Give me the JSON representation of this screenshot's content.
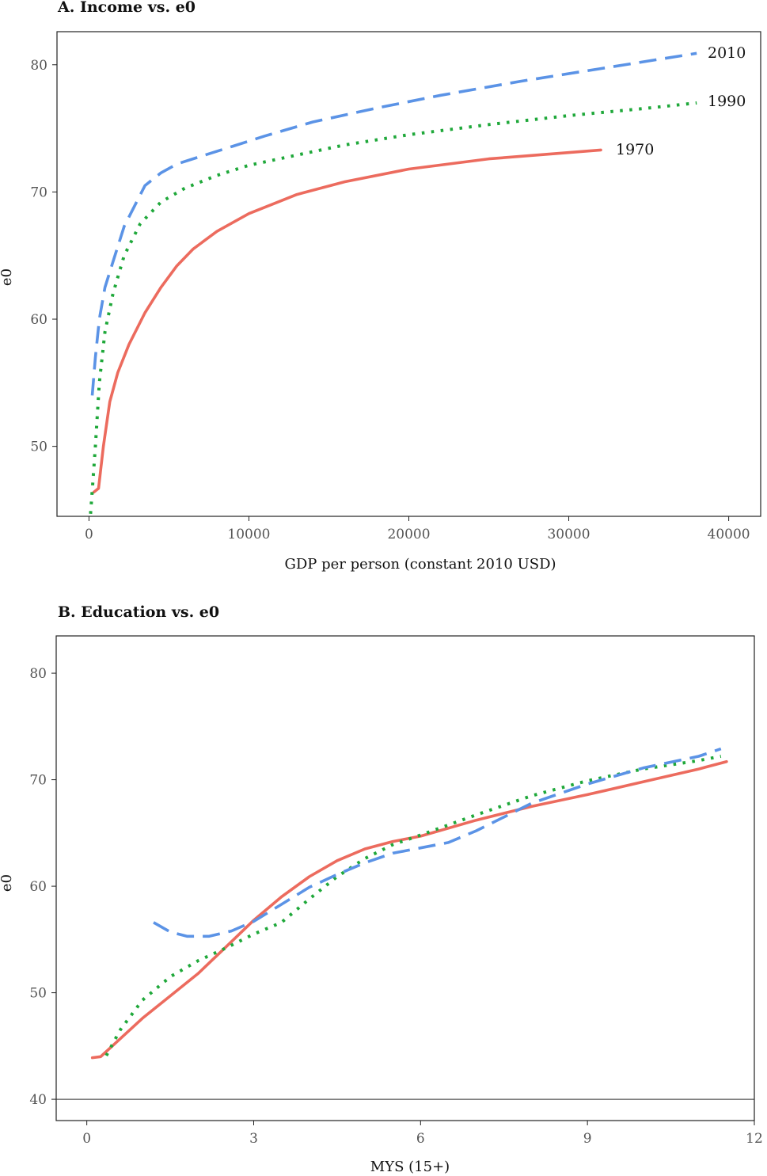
{
  "colors": {
    "1970": "#ec6b5e",
    "1990": "#1fa83a",
    "2010": "#5b93e6"
  },
  "chart_data": [
    {
      "type": "line",
      "title": "A. Income vs. e0",
      "xlabel": "GDP per person (constant 2010 USD)",
      "ylabel": "e0",
      "xlim": [
        -2000,
        42000
      ],
      "ylim": [
        44.5,
        82.6
      ],
      "xticks": [
        0,
        10000,
        20000,
        30000,
        40000
      ],
      "xtick_labels": [
        "0",
        "10000",
        "20000",
        "30000",
        "40000"
      ],
      "yticks": [
        50,
        60,
        70,
        80
      ],
      "ytick_labels": [
        "50",
        "60",
        "70",
        "80"
      ],
      "grid": false,
      "series": [
        {
          "name": "1970",
          "style": "solid",
          "points": [
            [
              300,
              46.4
            ],
            [
              600,
              46.7
            ],
            [
              900,
              50
            ],
            [
              1300,
              53.5
            ],
            [
              1800,
              55.8
            ],
            [
              2500,
              58
            ],
            [
              3500,
              60.5
            ],
            [
              4500,
              62.5
            ],
            [
              5500,
              64.2
            ],
            [
              6500,
              65.5
            ],
            [
              8000,
              66.9
            ],
            [
              10000,
              68.3
            ],
            [
              13000,
              69.8
            ],
            [
              16000,
              70.8
            ],
            [
              20000,
              71.8
            ],
            [
              25000,
              72.6
            ],
            [
              28000,
              72.9
            ],
            [
              32000,
              73.3
            ]
          ]
        },
        {
          "name": "1990",
          "style": "dotted",
          "points": [
            [
              100,
              44.7
            ],
            [
              200,
              46.5
            ],
            [
              400,
              50
            ],
            [
              650,
              55
            ],
            [
              1000,
              59
            ],
            [
              1500,
              62
            ],
            [
              2200,
              65
            ],
            [
              3200,
              67.5
            ],
            [
              4500,
              69.2
            ],
            [
              6000,
              70.3
            ],
            [
              8000,
              71.3
            ],
            [
              10000,
              72.1
            ],
            [
              13000,
              72.9
            ],
            [
              16000,
              73.7
            ],
            [
              20000,
              74.5
            ],
            [
              25000,
              75.3
            ],
            [
              30000,
              76
            ],
            [
              35000,
              76.6
            ],
            [
              38000,
              77
            ]
          ]
        },
        {
          "name": "2010",
          "style": "dashed",
          "points": [
            [
              200,
              54
            ],
            [
              400,
              57
            ],
            [
              650,
              60
            ],
            [
              1000,
              62.5
            ],
            [
              1500,
              64.5
            ],
            [
              2200,
              67.3
            ],
            [
              3500,
              70.5
            ],
            [
              4500,
              71.5
            ],
            [
              5500,
              72.2
            ],
            [
              7000,
              72.8
            ],
            [
              9000,
              73.6
            ],
            [
              11000,
              74.4
            ],
            [
              14000,
              75.5
            ],
            [
              18000,
              76.6
            ],
            [
              22000,
              77.6
            ],
            [
              27000,
              78.7
            ],
            [
              32000,
              79.7
            ],
            [
              38000,
              80.9
            ]
          ]
        }
      ]
    },
    {
      "type": "line",
      "title": "B. Education vs. e0",
      "xlabel": "MYS (15+)",
      "ylabel": "e0",
      "xlim": [
        -0.55,
        12
      ],
      "ylim": [
        38,
        83.5
      ],
      "xticks": [
        0,
        3,
        6,
        9,
        12
      ],
      "xtick_labels": [
        "0",
        "3",
        "6",
        "9",
        "12"
      ],
      "yticks": [
        40,
        50,
        60,
        70,
        80
      ],
      "ytick_labels": [
        "40",
        "50",
        "60",
        "70",
        "80"
      ],
      "hline": 40,
      "grid": false,
      "series": [
        {
          "name": "1970",
          "style": "solid",
          "points": [
            [
              0.1,
              43.9
            ],
            [
              0.25,
              44
            ],
            [
              0.5,
              45.2
            ],
            [
              1,
              47.6
            ],
            [
              1.5,
              49.7
            ],
            [
              2,
              51.8
            ],
            [
              2.5,
              54.3
            ],
            [
              3,
              56.8
            ],
            [
              3.5,
              59
            ],
            [
              4,
              60.9
            ],
            [
              4.5,
              62.4
            ],
            [
              5,
              63.5
            ],
            [
              5.5,
              64.2
            ],
            [
              6,
              64.7
            ],
            [
              7,
              66.2
            ],
            [
              8,
              67.5
            ],
            [
              9,
              68.6
            ],
            [
              10,
              69.8
            ],
            [
              11,
              71
            ],
            [
              11.5,
              71.7
            ]
          ]
        },
        {
          "name": "1990",
          "style": "dotted",
          "points": [
            [
              0.35,
              44.1
            ],
            [
              0.6,
              46.5
            ],
            [
              1,
              49.3
            ],
            [
              1.5,
              51.5
            ],
            [
              2,
              53
            ],
            [
              2.5,
              54.2
            ],
            [
              3,
              55.5
            ],
            [
              3.5,
              56.6
            ],
            [
              4,
              58.8
            ],
            [
              4.5,
              60.9
            ],
            [
              5,
              62.6
            ],
            [
              5.5,
              63.9
            ],
            [
              6,
              64.8
            ],
            [
              7,
              66.7
            ],
            [
              8,
              68.5
            ],
            [
              9,
              69.9
            ],
            [
              10,
              71
            ],
            [
              11,
              71.8
            ],
            [
              11.4,
              72.2
            ]
          ]
        },
        {
          "name": "2010",
          "style": "dashed",
          "points": [
            [
              1.2,
              56.6
            ],
            [
              1.5,
              55.7
            ],
            [
              1.8,
              55.3
            ],
            [
              2.2,
              55.3
            ],
            [
              2.6,
              55.8
            ],
            [
              3,
              56.7
            ],
            [
              3.5,
              58.3
            ],
            [
              4,
              59.9
            ],
            [
              4.5,
              61.1
            ],
            [
              5,
              62.2
            ],
            [
              5.5,
              63.1
            ],
            [
              6,
              63.6
            ],
            [
              6.5,
              64.1
            ],
            [
              7,
              65.2
            ],
            [
              7.5,
              66.5
            ],
            [
              8,
              67.8
            ],
            [
              9,
              69.6
            ],
            [
              10,
              71.1
            ],
            [
              11,
              72.2
            ],
            [
              11.4,
              72.9
            ]
          ]
        }
      ]
    }
  ]
}
